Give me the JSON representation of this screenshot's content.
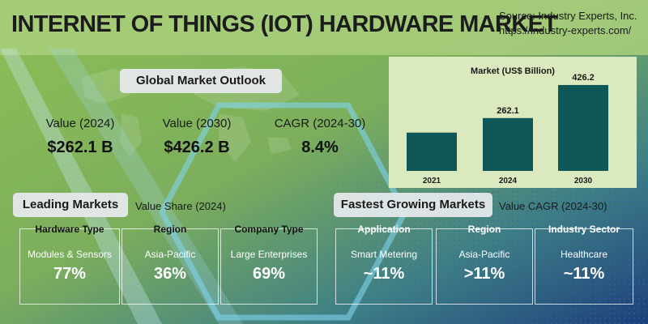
{
  "header": {
    "title": "INTERNET OF THINGS (IOT) HARDWARE MARKET",
    "source_line1": "Source: Industry Experts, Inc.",
    "source_line2": "https://industry-experts.com/"
  },
  "outlook": {
    "heading": "Global Market Outlook",
    "kpis": [
      {
        "label": "Value (2024)",
        "value": "$262.1 B"
      },
      {
        "label": "Value (2030)",
        "value": "$426.2 B"
      },
      {
        "label": "CAGR (2024-30)",
        "value": "8.4%"
      }
    ]
  },
  "leading": {
    "heading": "Leading Markets",
    "sub": "Value Share (2024)",
    "cards": [
      {
        "title": "Hardware Type",
        "segment": "Modules & Sensors",
        "value": "77%"
      },
      {
        "title": "Region",
        "segment": "Asia-Pacific",
        "value": "36%"
      },
      {
        "title": "Company Type",
        "segment": "Large Enterprises",
        "value": "69%"
      }
    ]
  },
  "fastest": {
    "heading": "Fastest Growing Markets",
    "sub": "Value CAGR (2024-30)",
    "cards": [
      {
        "title": "Application",
        "segment": "Smart Metering",
        "value": "~11%"
      },
      {
        "title": "Region",
        "segment": "Asia-Pacific",
        "value": ">11%"
      },
      {
        "title": "Industry Sector",
        "segment": "Healthcare",
        "value": "~11%"
      }
    ]
  },
  "colors": {
    "bar": "#0f5658",
    "chart_bg": "#dbe9bf"
  },
  "chart_data": {
    "type": "bar",
    "title": "Market (US$ Billion)",
    "categories": [
      "2021",
      "2024",
      "2030"
    ],
    "values": [
      null,
      262.1,
      426.2
    ],
    "value_labels": [
      "",
      "262.1",
      "426.2"
    ],
    "estimated_values": [
      190,
      262.1,
      426.2
    ],
    "ylim": [
      0,
      430
    ],
    "grid": false
  }
}
